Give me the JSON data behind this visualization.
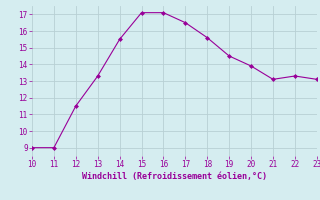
{
  "x": [
    10,
    11,
    12,
    13,
    14,
    15,
    16,
    17,
    18,
    19,
    20,
    21,
    22,
    23
  ],
  "y": [
    9,
    9,
    11.5,
    13.3,
    15.5,
    17.1,
    17.1,
    16.5,
    15.6,
    14.5,
    13.9,
    13.1,
    13.3,
    13.1
  ],
  "xlim": [
    10,
    23
  ],
  "ylim": [
    8.5,
    17.5
  ],
  "xticks": [
    10,
    11,
    12,
    13,
    14,
    15,
    16,
    17,
    18,
    19,
    20,
    21,
    22,
    23
  ],
  "yticks": [
    9,
    10,
    11,
    12,
    13,
    14,
    15,
    16,
    17
  ],
  "xlabel": "Windchill (Refroidissement éolien,°C)",
  "line_color": "#990099",
  "marker": "D",
  "marker_size": 2,
  "bg_color": "#d5edf0",
  "grid_color": "#b8d0d4",
  "tick_color": "#990099",
  "label_color": "#990099",
  "font_family": "monospace",
  "tick_fontsize": 5.5,
  "xlabel_fontsize": 6.0
}
